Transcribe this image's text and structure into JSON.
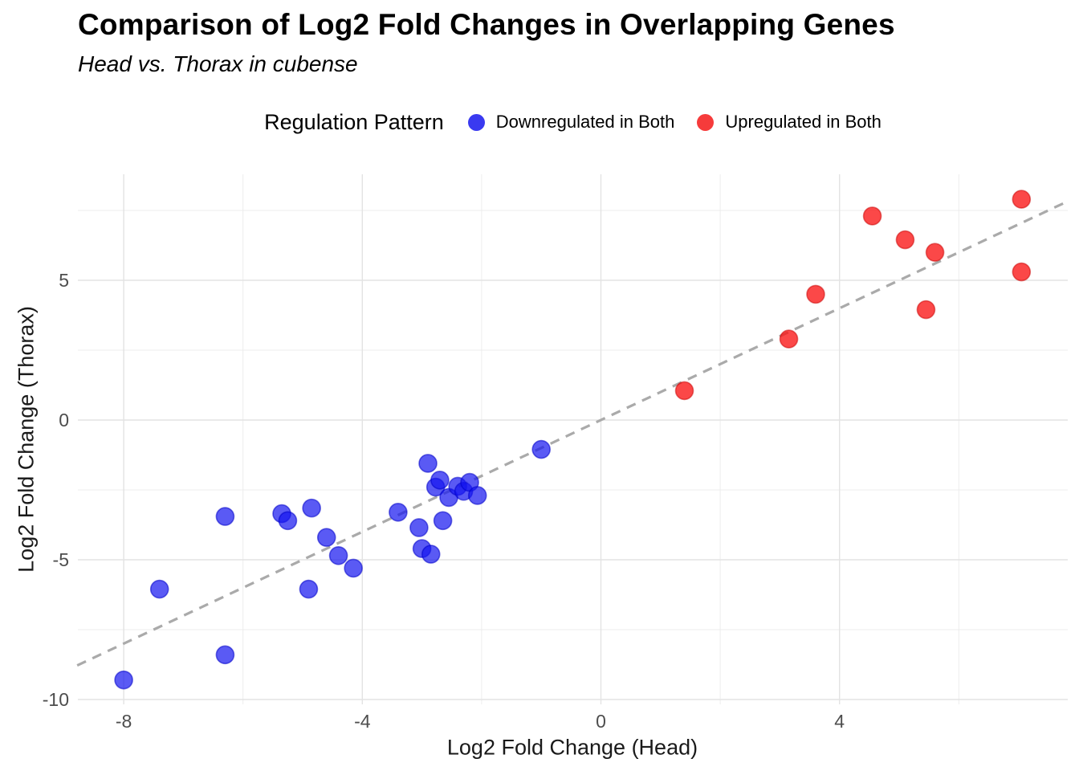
{
  "title": "Comparison of Log2 Fold Changes in Overlapping Genes",
  "subtitle": "Head vs. Thorax in cubense",
  "legend": {
    "title": "Regulation Pattern",
    "items": [
      {
        "label": "Downregulated in Both",
        "color": "#3A3AF0"
      },
      {
        "label": "Upregulated in Both",
        "color": "#F63B3B"
      }
    ]
  },
  "chart_data": {
    "type": "scatter",
    "title": "Comparison of Log2 Fold Changes in Overlapping Genes",
    "subtitle": "Head vs. Thorax in cubense",
    "xlabel": "Log2 Fold Change (Head)",
    "ylabel": "Log2 Fold Change (Thorax)",
    "xlim": [
      -8.78,
      7.83
    ],
    "ylim": [
      -10.17,
      8.79
    ],
    "x_ticks": [
      -8,
      -4,
      0,
      4
    ],
    "x_minor_ticks": [
      -6,
      -2,
      2,
      6
    ],
    "y_ticks": [
      -10,
      -5,
      0,
      5
    ],
    "y_minor_ticks": [
      -7.5,
      -2.5,
      2.5,
      7.5
    ],
    "grid": true,
    "legend_position": "top",
    "point_radius": 11,
    "series": [
      {
        "name": "Downregulated in Both",
        "fill": "#1414F0",
        "fill_opacity": 0.7,
        "stroke": "#0000C8",
        "stroke_opacity": 0.55,
        "points": [
          [
            -8.0,
            -9.3
          ],
          [
            -7.4,
            -6.05
          ],
          [
            -6.3,
            -8.4
          ],
          [
            -6.3,
            -3.45
          ],
          [
            -5.35,
            -3.35
          ],
          [
            -5.25,
            -3.6
          ],
          [
            -4.9,
            -6.05
          ],
          [
            -4.85,
            -3.15
          ],
          [
            -4.6,
            -4.2
          ],
          [
            -4.4,
            -4.85
          ],
          [
            -4.15,
            -5.3
          ],
          [
            -3.4,
            -3.3
          ],
          [
            -3.05,
            -3.85
          ],
          [
            -3.0,
            -4.6
          ],
          [
            -2.85,
            -4.8
          ],
          [
            -2.9,
            -1.55
          ],
          [
            -2.77,
            -2.4
          ],
          [
            -2.7,
            -2.15
          ],
          [
            -2.65,
            -3.6
          ],
          [
            -2.55,
            -2.77
          ],
          [
            -2.4,
            -2.37
          ],
          [
            -2.3,
            -2.55
          ],
          [
            -2.2,
            -2.23
          ],
          [
            -2.07,
            -2.7
          ],
          [
            -1.0,
            -1.05
          ]
        ]
      },
      {
        "name": "Upregulated in Both",
        "fill": "#FA1414",
        "fill_opacity": 0.78,
        "stroke": "#C80000",
        "stroke_opacity": 0.5,
        "points": [
          [
            1.4,
            1.05
          ],
          [
            3.15,
            2.9
          ],
          [
            3.6,
            4.5
          ],
          [
            4.55,
            7.3
          ],
          [
            5.1,
            6.45
          ],
          [
            5.6,
            6.0
          ],
          [
            5.45,
            3.95
          ],
          [
            7.05,
            7.9
          ],
          [
            7.05,
            5.3
          ]
        ]
      }
    ],
    "reference_line": {
      "type": "identity",
      "style": "dashed",
      "from": [
        -8.78,
        -8.78
      ],
      "to": [
        7.83,
        7.83
      ],
      "color": "#AAAAAA",
      "width": 3.2,
      "dash": [
        12,
        9
      ]
    }
  },
  "style_colors": {
    "tick_label": "#4D4D4D",
    "axis_title": "#1A1A1A",
    "grid_major": "#E3E3E3",
    "grid_minor": "#ECECEC",
    "background": "#FFFFFF"
  }
}
